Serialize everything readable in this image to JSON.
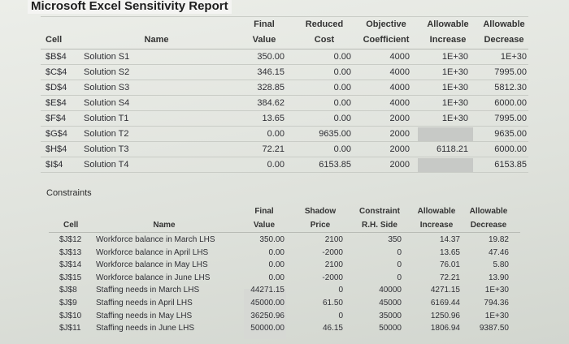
{
  "title": "Microsoft Excel Sensitivity Report",
  "variables": {
    "headers": {
      "cell": "Cell",
      "name": "Name",
      "final1": "Final",
      "final2": "Value",
      "reduced1": "Reduced",
      "reduced2": "Cost",
      "objective1": "Objective",
      "objective2": "Coefficient",
      "inc1": "Allowable",
      "inc2": "Increase",
      "dec1": "Allowable",
      "dec2": "Decrease"
    },
    "rows": [
      {
        "cell": "$B$4",
        "name": "Solution S1",
        "final": "350.00",
        "reduced": "0.00",
        "objective": "4000",
        "increase": "1E+30",
        "decrease": "1E+30"
      },
      {
        "cell": "$C$4",
        "name": "Solution S2",
        "final": "346.15",
        "reduced": "0.00",
        "objective": "4000",
        "increase": "1E+30",
        "decrease": "7995.00"
      },
      {
        "cell": "$D$4",
        "name": "Solution S3",
        "final": "328.85",
        "reduced": "0.00",
        "objective": "4000",
        "increase": "1E+30",
        "decrease": "5812.30"
      },
      {
        "cell": "$E$4",
        "name": "Solution S4",
        "final": "384.62",
        "reduced": "0.00",
        "objective": "4000",
        "increase": "1E+30",
        "decrease": "6000.00"
      },
      {
        "cell": "$F$4",
        "name": "Solution T1",
        "final": "13.65",
        "reduced": "0.00",
        "objective": "2000",
        "increase": "1E+30",
        "decrease": "7995.00"
      },
      {
        "cell": "$G$4",
        "name": "Solution T2",
        "final": "0.00",
        "reduced": "9635.00",
        "objective": "2000",
        "increase": "",
        "decrease": "9635.00"
      },
      {
        "cell": "$H$4",
        "name": "Solution T3",
        "final": "72.21",
        "reduced": "0.00",
        "objective": "2000",
        "increase": "6118.21",
        "decrease": "6000.00"
      },
      {
        "cell": "$I$4",
        "name": "Solution T4",
        "final": "0.00",
        "reduced": "6153.85",
        "objective": "2000",
        "increase": "",
        "decrease": "6153.85"
      }
    ]
  },
  "constraints": {
    "label": "Constraints",
    "headers": {
      "cell": "Cell",
      "name": "Name",
      "final1": "Final",
      "final2": "Value",
      "shadow1": "Shadow",
      "shadow2": "Price",
      "rhs1": "Constraint",
      "rhs2": "R.H. Side",
      "inc1": "Allowable",
      "inc2": "Increase",
      "dec1": "Allowable",
      "dec2": "Decrease"
    },
    "rows": [
      {
        "cell": "$J$12",
        "name": "Workforce balance in March LHS",
        "final": "350.00",
        "shadow": "2100",
        "rhs": "350",
        "increase": "14.37",
        "decrease": "19.82"
      },
      {
        "cell": "$J$13",
        "name": "Workforce balance in April LHS",
        "final": "0.00",
        "shadow": "-2000",
        "rhs": "0",
        "increase": "13.65",
        "decrease": "47.46"
      },
      {
        "cell": "$J$14",
        "name": "Workforce balance in May LHS",
        "final": "0.00",
        "shadow": "2100",
        "rhs": "0",
        "increase": "76.01",
        "decrease": "5.80"
      },
      {
        "cell": "$J$15",
        "name": "Workforce balance in June LHS",
        "final": "0.00",
        "shadow": "-2000",
        "rhs": "0",
        "increase": "72.21",
        "decrease": "13.90"
      },
      {
        "cell": "$J$8",
        "name": "Staffing needs in March LHS",
        "final": "44271.15",
        "shadow": "0",
        "rhs": "40000",
        "increase": "4271.15",
        "decrease": "1E+30"
      },
      {
        "cell": "$J$9",
        "name": "Staffing needs in April LHS",
        "final": "45000.00",
        "shadow": "61.50",
        "rhs": "45000",
        "increase": "6169.44",
        "decrease": "794.36"
      },
      {
        "cell": "$J$10",
        "name": "Staffing needs in May LHS",
        "final": "36250.96",
        "shadow": "0",
        "rhs": "35000",
        "increase": "1250.96",
        "decrease": "1E+30"
      },
      {
        "cell": "$J$11",
        "name": "Staffing needs in June LHS",
        "final": "50000.00",
        "shadow": "46.15",
        "rhs": "50000",
        "increase": "1806.94",
        "decrease": "9387.50"
      }
    ]
  }
}
